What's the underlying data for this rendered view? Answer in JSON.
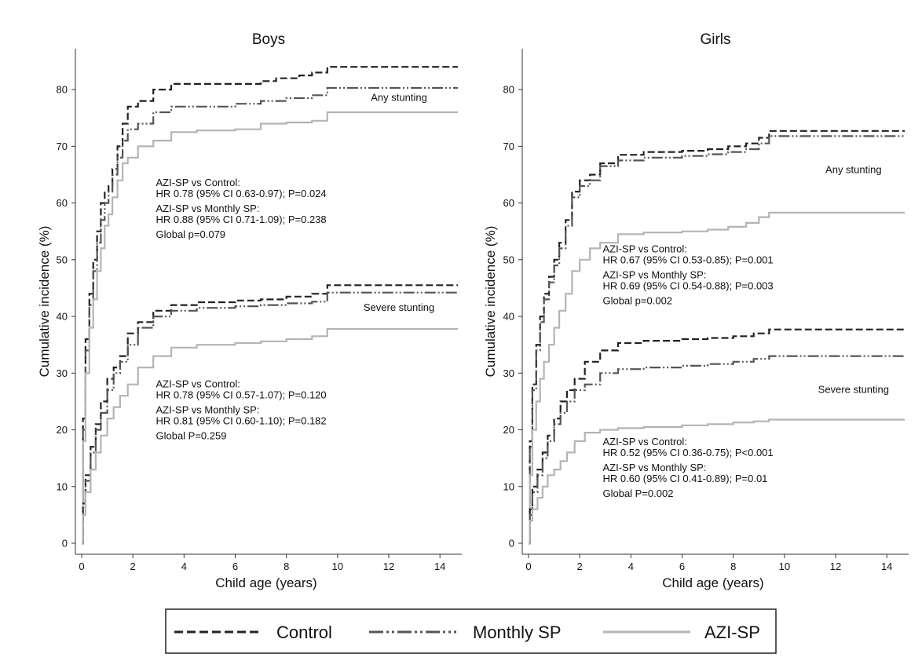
{
  "chart_data": [
    {
      "type": "line",
      "title": "Boys",
      "xlabel": "Child age (years)",
      "ylabel": "Cumulative incidence (%)",
      "xlim": [
        0,
        14.7
      ],
      "ylim": [
        0,
        85
      ],
      "xticks": [
        0,
        2,
        4,
        6,
        8,
        10,
        12,
        14
      ],
      "yticks": [
        0,
        10,
        20,
        30,
        40,
        50,
        60,
        70,
        80
      ],
      "series": [
        {
          "name": "Control",
          "group": "Any stunting",
          "style": "dash",
          "x": [
            0,
            0.05,
            0.15,
            0.3,
            0.45,
            0.6,
            0.75,
            0.9,
            1.05,
            1.2,
            1.4,
            1.6,
            1.8,
            2.2,
            2.8,
            3.5,
            4.5,
            6.0,
            7.0,
            7.6,
            8.5,
            9.0,
            9.6,
            10.0,
            14.7
          ],
          "y": [
            0,
            22,
            36,
            44,
            50,
            55,
            60,
            62,
            63,
            66,
            70,
            74,
            77,
            78,
            80,
            81,
            81,
            81,
            81.5,
            82,
            82.5,
            83,
            84,
            84,
            84
          ]
        },
        {
          "name": "Monthly SP",
          "group": "Any stunting",
          "style": "dashdot",
          "x": [
            0,
            0.05,
            0.15,
            0.3,
            0.45,
            0.6,
            0.75,
            0.9,
            1.05,
            1.2,
            1.4,
            1.6,
            1.8,
            2.2,
            2.8,
            3.5,
            4.5,
            6.0,
            7.0,
            8.0,
            9.0,
            9.6,
            10.0,
            14.7
          ],
          "y": [
            0,
            20,
            34,
            42,
            48,
            53,
            57,
            60,
            62,
            65,
            68,
            71,
            73,
            74,
            76,
            77,
            77,
            77.5,
            78,
            78.5,
            79,
            80.3,
            80.3,
            80.3
          ]
        },
        {
          "name": "AZI-SP",
          "group": "Any stunting",
          "style": "solid",
          "x": [
            0,
            0.05,
            0.15,
            0.3,
            0.45,
            0.6,
            0.75,
            0.9,
            1.05,
            1.2,
            1.4,
            1.6,
            1.8,
            2.2,
            2.8,
            3.5,
            4.5,
            6.0,
            7.0,
            8.0,
            9.0,
            9.6,
            10.0,
            14.7
          ],
          "y": [
            0,
            18,
            30,
            38,
            43,
            48,
            52,
            56,
            58,
            61,
            64,
            67,
            68,
            70,
            71,
            72.5,
            72.8,
            73,
            74,
            74.2,
            74.5,
            76,
            76,
            76
          ]
        },
        {
          "name": "Control",
          "group": "Severe stunting",
          "style": "dash",
          "x": [
            0,
            0.05,
            0.15,
            0.35,
            0.55,
            0.75,
            1.0,
            1.25,
            1.5,
            1.8,
            2.2,
            2.8,
            3.5,
            4.5,
            6.0,
            7.0,
            8.0,
            9.0,
            9.6,
            10.0,
            14.7
          ],
          "y": [
            0,
            7,
            12,
            17,
            21,
            25,
            29,
            31,
            33,
            37,
            39,
            41,
            42,
            42.5,
            42.8,
            43,
            43.5,
            44,
            45.5,
            45.5,
            45.5
          ]
        },
        {
          "name": "Monthly SP",
          "group": "Severe stunting",
          "style": "dashdot",
          "x": [
            0,
            0.05,
            0.15,
            0.35,
            0.55,
            0.75,
            1.0,
            1.25,
            1.5,
            1.8,
            2.2,
            2.8,
            3.5,
            4.5,
            6.0,
            7.0,
            8.0,
            9.0,
            9.6,
            10.0,
            14.7
          ],
          "y": [
            0,
            6,
            11,
            16,
            20,
            23,
            27,
            30,
            32,
            35,
            38,
            40,
            41,
            41.5,
            41.8,
            42,
            42.3,
            42.6,
            44.2,
            44.2,
            44.2
          ]
        },
        {
          "name": "AZI-SP",
          "group": "Severe stunting",
          "style": "solid",
          "x": [
            0,
            0.05,
            0.15,
            0.35,
            0.55,
            0.75,
            1.0,
            1.25,
            1.5,
            1.8,
            2.2,
            2.8,
            3.5,
            4.5,
            6.0,
            7.0,
            8.0,
            9.0,
            9.6,
            10.0,
            14.7
          ],
          "y": [
            0,
            5,
            9,
            13,
            16,
            19,
            22,
            24,
            26,
            28,
            31,
            33,
            34.5,
            35,
            35.3,
            35.6,
            36,
            36.5,
            37.8,
            37.8,
            37.8
          ]
        }
      ],
      "annotations": [
        {
          "text": "Any stunting",
          "x": 12.4,
          "y": 78
        },
        {
          "text": "Severe stunting",
          "x": 12.4,
          "y": 41
        },
        {
          "lines": [
            "AZI-SP vs Control:",
            "HR 0.78 (95% CI 0.63-0.97); P=0.024",
            "AZI-SP vs Monthly SP:",
            "HR 0.88 (95% CI 0.71-1.09); P=0.238",
            "Global p=0.079"
          ],
          "x": 2.9,
          "y": 63.0
        },
        {
          "lines": [
            "AZI-SP vs Control:",
            "HR 0.78 (95% CI 0.57-1.07); P=0.120",
            "AZI-SP vs Monthly SP:",
            "HR 0.81 (95% CI 0.60-1.10); P=0.182",
            "Global P=0.259"
          ],
          "x": 2.9,
          "y": 27.5
        }
      ]
    },
    {
      "type": "line",
      "title": "Girls",
      "xlabel": "Child age (years)",
      "ylabel": "Cumulative incidence (%)",
      "xlim": [
        0,
        14.7
      ],
      "ylim": [
        0,
        85
      ],
      "xticks": [
        0,
        2,
        4,
        6,
        8,
        10,
        12,
        14
      ],
      "yticks": [
        0,
        10,
        20,
        30,
        40,
        50,
        60,
        70,
        80
      ],
      "series": [
        {
          "name": "Control",
          "group": "Any stunting",
          "style": "dash",
          "x": [
            0,
            0.05,
            0.15,
            0.3,
            0.45,
            0.6,
            0.8,
            1.0,
            1.2,
            1.45,
            1.7,
            2.0,
            2.4,
            2.8,
            3.5,
            4.5,
            6.0,
            7.0,
            7.8,
            8.5,
            9.0,
            9.4,
            10.0,
            14.7
          ],
          "y": [
            0,
            18,
            28,
            35,
            40,
            44,
            47,
            50,
            53,
            57,
            62,
            64,
            65,
            67,
            68.5,
            69,
            69.2,
            69.5,
            70,
            70.5,
            71.5,
            72.7,
            72.7,
            72.7
          ]
        },
        {
          "name": "Monthly SP",
          "group": "Any stunting",
          "style": "dashdot",
          "x": [
            0,
            0.05,
            0.15,
            0.3,
            0.45,
            0.6,
            0.8,
            1.0,
            1.2,
            1.45,
            1.7,
            2.0,
            2.4,
            2.8,
            3.5,
            4.5,
            6.0,
            7.0,
            7.8,
            8.5,
            9.0,
            9.4,
            10.0,
            14.7
          ],
          "y": [
            0,
            17,
            27,
            34,
            39,
            43,
            46,
            49,
            52,
            56,
            61,
            63,
            64,
            66.5,
            67.5,
            68,
            68.3,
            68.6,
            69,
            69.5,
            70.5,
            71.8,
            71.8,
            71.8
          ]
        },
        {
          "name": "AZI-SP",
          "group": "Any stunting",
          "style": "solid",
          "x": [
            0,
            0.05,
            0.15,
            0.3,
            0.45,
            0.6,
            0.8,
            1.0,
            1.2,
            1.45,
            1.7,
            2.0,
            2.4,
            2.8,
            3.5,
            4.5,
            6.0,
            7.0,
            7.8,
            8.5,
            9.0,
            9.4,
            10.0,
            14.7
          ],
          "y": [
            0,
            12,
            20,
            25,
            29,
            32,
            35,
            38,
            41,
            44,
            48,
            50,
            52,
            53,
            54.5,
            54.8,
            55,
            55.3,
            55.8,
            56.5,
            57.5,
            58.3,
            58.3,
            58.3
          ]
        },
        {
          "name": "Control",
          "group": "Severe stunting",
          "style": "dash",
          "x": [
            0,
            0.05,
            0.15,
            0.35,
            0.55,
            0.75,
            1.0,
            1.25,
            1.5,
            1.8,
            2.2,
            2.8,
            3.5,
            4.5,
            6.0,
            7.0,
            8.0,
            8.8,
            9.4,
            10.0,
            14.7
          ],
          "y": [
            0,
            6,
            10,
            13,
            16,
            19,
            22,
            25,
            27,
            29,
            32,
            34,
            35.3,
            35.7,
            36,
            36.2,
            36.5,
            37,
            37.7,
            37.7,
            37.7
          ]
        },
        {
          "name": "Monthly SP",
          "group": "Severe stunting",
          "style": "dashdot",
          "x": [
            0,
            0.05,
            0.15,
            0.35,
            0.55,
            0.75,
            1.0,
            1.25,
            1.5,
            1.8,
            2.2,
            2.8,
            3.5,
            4.5,
            6.0,
            7.0,
            8.0,
            8.8,
            9.4,
            10.0,
            14.7
          ],
          "y": [
            0,
            5,
            9,
            12,
            15,
            18,
            21,
            23,
            25,
            27,
            28,
            30,
            30.7,
            31,
            31.3,
            31.6,
            32,
            32.5,
            33,
            33,
            33
          ]
        },
        {
          "name": "AZI-SP",
          "group": "Severe stunting",
          "style": "solid",
          "x": [
            0,
            0.05,
            0.15,
            0.35,
            0.55,
            0.75,
            1.0,
            1.25,
            1.5,
            1.8,
            2.2,
            2.8,
            3.5,
            4.5,
            6.0,
            7.0,
            8.0,
            8.8,
            9.4,
            10.0,
            14.7
          ],
          "y": [
            0,
            4,
            6,
            8,
            10,
            12,
            13,
            14.5,
            16,
            18,
            19.5,
            20,
            20.3,
            20.5,
            20.8,
            21,
            21.3,
            21.5,
            21.8,
            21.8,
            21.8
          ]
        }
      ],
      "annotations": [
        {
          "text": "Any stunting",
          "x": 12.7,
          "y": 65.3
        },
        {
          "text": "Severe stunting",
          "x": 12.7,
          "y": 26.5
        },
        {
          "lines": [
            "AZI-SP vs Control:",
            "HR 0.67 (95% CI 0.53-0.85); P=0.001",
            "AZI-SP vs Monthly SP:",
            "HR 0.69 (95% CI 0.54-0.88); P=0.003",
            "Global p=0.002"
          ],
          "x": 2.9,
          "y": 51.3
        },
        {
          "lines": [
            "AZI-SP vs Control:",
            "HR 0.52 (95% CI 0.36-0.75); P<0.001",
            "AZI-SP vs Monthly SP:",
            "HR 0.60 (95% CI 0.41-0.89); P=0.01",
            "Global P=0.002"
          ],
          "x": 2.9,
          "y": 17.3
        }
      ]
    }
  ],
  "legend": {
    "placement": "bottom",
    "items": [
      {
        "label": "Control",
        "style": "dash",
        "color": "#222222"
      },
      {
        "label": "Monthly SP",
        "style": "dashdot",
        "color": "#555555"
      },
      {
        "label": "AZI-SP",
        "style": "solid",
        "color": "#b4b4b4"
      }
    ]
  },
  "colors": {
    "Control": "#222222",
    "Monthly SP": "#555555",
    "AZI-SP": "#b4b4b4"
  }
}
